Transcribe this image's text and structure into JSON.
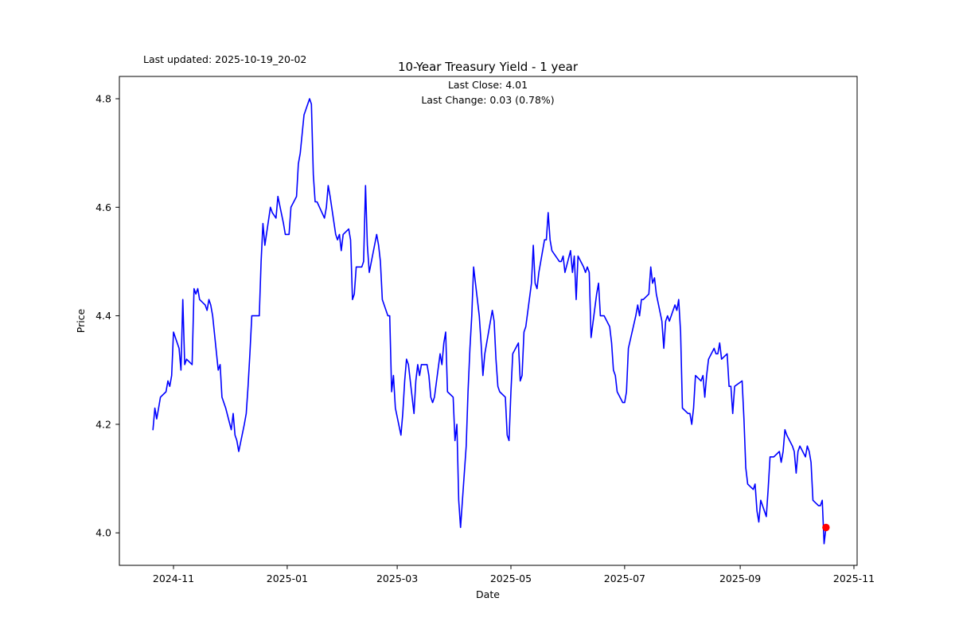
{
  "header": {
    "last_updated": "Last updated: 2025-10-19_20-02",
    "title": "10-Year Treasury Yield - 1 year",
    "annotation_line1": "Last Close: 4.01",
    "annotation_line2": "Last Change: 0.03 (0.78%)"
  },
  "chart_data": {
    "type": "line",
    "title": "10-Year Treasury Yield - 1 year",
    "xlabel": "Date",
    "ylabel": "Price",
    "ylim": [
      3.94,
      4.84
    ],
    "xlim": [
      "2024-10-03",
      "2025-11-04"
    ],
    "grid": false,
    "legend": "none",
    "x_ticks": [
      "2024-11",
      "2025-01",
      "2025-03",
      "2025-05",
      "2025-07",
      "2025-09",
      "2025-11"
    ],
    "y_ticks": [
      4.0,
      4.2,
      4.4,
      4.6,
      4.8
    ],
    "line_color": "#0000ff",
    "marker_color": "#ff0000",
    "last_point": {
      "date": "2025-10-17",
      "value": 4.01
    },
    "series": [
      {
        "name": "10-Year Treasury Yield",
        "color": "#0000ff",
        "points": [
          [
            "2024-10-21",
            4.19
          ],
          [
            "2024-10-22",
            4.23
          ],
          [
            "2024-10-23",
            4.21
          ],
          [
            "2024-10-24",
            4.23
          ],
          [
            "2024-10-25",
            4.25
          ],
          [
            "2024-10-28",
            4.26
          ],
          [
            "2024-10-29",
            4.28
          ],
          [
            "2024-10-30",
            4.27
          ],
          [
            "2024-10-31",
            4.29
          ],
          [
            "2024-11-01",
            4.37
          ],
          [
            "2024-11-04",
            4.34
          ],
          [
            "2024-11-05",
            4.3
          ],
          [
            "2024-11-06",
            4.43
          ],
          [
            "2024-11-07",
            4.31
          ],
          [
            "2024-11-08",
            4.32
          ],
          [
            "2024-11-11",
            4.31
          ],
          [
            "2024-11-12",
            4.45
          ],
          [
            "2024-11-13",
            4.44
          ],
          [
            "2024-11-14",
            4.45
          ],
          [
            "2024-11-15",
            4.43
          ],
          [
            "2024-11-18",
            4.42
          ],
          [
            "2024-11-19",
            4.41
          ],
          [
            "2024-11-20",
            4.43
          ],
          [
            "2024-11-21",
            4.42
          ],
          [
            "2024-11-22",
            4.4
          ],
          [
            "2024-11-25",
            4.3
          ],
          [
            "2024-11-26",
            4.31
          ],
          [
            "2024-11-27",
            4.25
          ],
          [
            "2024-11-29",
            4.23
          ],
          [
            "2024-12-02",
            4.19
          ],
          [
            "2024-12-03",
            4.22
          ],
          [
            "2024-12-04",
            4.18
          ],
          [
            "2024-12-05",
            4.17
          ],
          [
            "2024-12-06",
            4.15
          ],
          [
            "2024-12-09",
            4.2
          ],
          [
            "2024-12-10",
            4.22
          ],
          [
            "2024-12-11",
            4.27
          ],
          [
            "2024-12-12",
            4.33
          ],
          [
            "2024-12-13",
            4.4
          ],
          [
            "2024-12-16",
            4.4
          ],
          [
            "2024-12-17",
            4.4
          ],
          [
            "2024-12-18",
            4.5
          ],
          [
            "2024-12-19",
            4.57
          ],
          [
            "2024-12-20",
            4.53
          ],
          [
            "2024-12-23",
            4.6
          ],
          [
            "2024-12-24",
            4.59
          ],
          [
            "2024-12-26",
            4.58
          ],
          [
            "2024-12-27",
            4.62
          ],
          [
            "2024-12-30",
            4.57
          ],
          [
            "2024-12-31",
            4.55
          ],
          [
            "2025-01-02",
            4.55
          ],
          [
            "2025-01-03",
            4.6
          ],
          [
            "2025-01-06",
            4.62
          ],
          [
            "2025-01-07",
            4.68
          ],
          [
            "2025-01-08",
            4.7
          ],
          [
            "2025-01-10",
            4.77
          ],
          [
            "2025-01-13",
            4.8
          ],
          [
            "2025-01-14",
            4.79
          ],
          [
            "2025-01-15",
            4.66
          ],
          [
            "2025-01-16",
            4.61
          ],
          [
            "2025-01-17",
            4.61
          ],
          [
            "2025-01-21",
            4.58
          ],
          [
            "2025-01-22",
            4.6
          ],
          [
            "2025-01-23",
            4.64
          ],
          [
            "2025-01-24",
            4.62
          ],
          [
            "2025-01-27",
            4.55
          ],
          [
            "2025-01-28",
            4.54
          ],
          [
            "2025-01-29",
            4.55
          ],
          [
            "2025-01-30",
            4.52
          ],
          [
            "2025-01-31",
            4.55
          ],
          [
            "2025-02-03",
            4.56
          ],
          [
            "2025-02-04",
            4.54
          ],
          [
            "2025-02-05",
            4.43
          ],
          [
            "2025-02-06",
            4.44
          ],
          [
            "2025-02-07",
            4.49
          ],
          [
            "2025-02-10",
            4.49
          ],
          [
            "2025-02-11",
            4.5
          ],
          [
            "2025-02-12",
            4.64
          ],
          [
            "2025-02-13",
            4.53
          ],
          [
            "2025-02-14",
            4.48
          ],
          [
            "2025-02-18",
            4.55
          ],
          [
            "2025-02-19",
            4.53
          ],
          [
            "2025-02-20",
            4.5
          ],
          [
            "2025-02-21",
            4.43
          ],
          [
            "2025-02-24",
            4.4
          ],
          [
            "2025-02-25",
            4.4
          ],
          [
            "2025-02-26",
            4.26
          ],
          [
            "2025-02-27",
            4.29
          ],
          [
            "2025-02-28",
            4.23
          ],
          [
            "2025-03-03",
            4.18
          ],
          [
            "2025-03-04",
            4.22
          ],
          [
            "2025-03-05",
            4.28
          ],
          [
            "2025-03-06",
            4.32
          ],
          [
            "2025-03-07",
            4.31
          ],
          [
            "2025-03-10",
            4.22
          ],
          [
            "2025-03-11",
            4.28
          ],
          [
            "2025-03-12",
            4.31
          ],
          [
            "2025-03-13",
            4.29
          ],
          [
            "2025-03-14",
            4.31
          ],
          [
            "2025-03-17",
            4.31
          ],
          [
            "2025-03-18",
            4.29
          ],
          [
            "2025-03-19",
            4.25
          ],
          [
            "2025-03-20",
            4.24
          ],
          [
            "2025-03-21",
            4.25
          ],
          [
            "2025-03-24",
            4.33
          ],
          [
            "2025-03-25",
            4.31
          ],
          [
            "2025-03-26",
            4.35
          ],
          [
            "2025-03-27",
            4.37
          ],
          [
            "2025-03-28",
            4.26
          ],
          [
            "2025-03-31",
            4.25
          ],
          [
            "2025-04-01",
            4.17
          ],
          [
            "2025-04-02",
            4.2
          ],
          [
            "2025-04-03",
            4.06
          ],
          [
            "2025-04-04",
            4.01
          ],
          [
            "2025-04-07",
            4.16
          ],
          [
            "2025-04-08",
            4.26
          ],
          [
            "2025-04-09",
            4.34
          ],
          [
            "2025-04-10",
            4.4
          ],
          [
            "2025-04-11",
            4.49
          ],
          [
            "2025-04-14",
            4.4
          ],
          [
            "2025-04-15",
            4.35
          ],
          [
            "2025-04-16",
            4.29
          ],
          [
            "2025-04-17",
            4.33
          ],
          [
            "2025-04-21",
            4.41
          ],
          [
            "2025-04-22",
            4.39
          ],
          [
            "2025-04-23",
            4.32
          ],
          [
            "2025-04-24",
            4.27
          ],
          [
            "2025-04-25",
            4.26
          ],
          [
            "2025-04-28",
            4.25
          ],
          [
            "2025-04-29",
            4.18
          ],
          [
            "2025-04-30",
            4.17
          ],
          [
            "2025-05-01",
            4.26
          ],
          [
            "2025-05-02",
            4.33
          ],
          [
            "2025-05-05",
            4.35
          ],
          [
            "2025-05-06",
            4.28
          ],
          [
            "2025-05-07",
            4.29
          ],
          [
            "2025-05-08",
            4.37
          ],
          [
            "2025-05-09",
            4.38
          ],
          [
            "2025-05-12",
            4.46
          ],
          [
            "2025-05-13",
            4.53
          ],
          [
            "2025-05-14",
            4.46
          ],
          [
            "2025-05-15",
            4.45
          ],
          [
            "2025-05-16",
            4.48
          ],
          [
            "2025-05-19",
            4.54
          ],
          [
            "2025-05-20",
            4.54
          ],
          [
            "2025-05-21",
            4.59
          ],
          [
            "2025-05-22",
            4.54
          ],
          [
            "2025-05-23",
            4.52
          ],
          [
            "2025-05-27",
            4.5
          ],
          [
            "2025-05-28",
            4.5
          ],
          [
            "2025-05-29",
            4.51
          ],
          [
            "2025-05-30",
            4.48
          ],
          [
            "2025-06-02",
            4.52
          ],
          [
            "2025-06-03",
            4.48
          ],
          [
            "2025-06-04",
            4.51
          ],
          [
            "2025-06-05",
            4.43
          ],
          [
            "2025-06-06",
            4.51
          ],
          [
            "2025-06-09",
            4.49
          ],
          [
            "2025-06-10",
            4.48
          ],
          [
            "2025-06-11",
            4.49
          ],
          [
            "2025-06-12",
            4.48
          ],
          [
            "2025-06-13",
            4.36
          ],
          [
            "2025-06-16",
            4.44
          ],
          [
            "2025-06-17",
            4.46
          ],
          [
            "2025-06-18",
            4.4
          ],
          [
            "2025-06-20",
            4.4
          ],
          [
            "2025-06-23",
            4.38
          ],
          [
            "2025-06-24",
            4.35
          ],
          [
            "2025-06-25",
            4.3
          ],
          [
            "2025-06-26",
            4.29
          ],
          [
            "2025-06-27",
            4.26
          ],
          [
            "2025-06-30",
            4.24
          ],
          [
            "2025-07-01",
            4.24
          ],
          [
            "2025-07-02",
            4.26
          ],
          [
            "2025-07-03",
            4.34
          ],
          [
            "2025-07-07",
            4.4
          ],
          [
            "2025-07-08",
            4.42
          ],
          [
            "2025-07-09",
            4.4
          ],
          [
            "2025-07-10",
            4.43
          ],
          [
            "2025-07-11",
            4.43
          ],
          [
            "2025-07-14",
            4.44
          ],
          [
            "2025-07-15",
            4.49
          ],
          [
            "2025-07-16",
            4.46
          ],
          [
            "2025-07-17",
            4.47
          ],
          [
            "2025-07-18",
            4.44
          ],
          [
            "2025-07-21",
            4.39
          ],
          [
            "2025-07-22",
            4.34
          ],
          [
            "2025-07-23",
            4.39
          ],
          [
            "2025-07-24",
            4.4
          ],
          [
            "2025-07-25",
            4.39
          ],
          [
            "2025-07-28",
            4.42
          ],
          [
            "2025-07-29",
            4.41
          ],
          [
            "2025-07-30",
            4.43
          ],
          [
            "2025-07-31",
            4.37
          ],
          [
            "2025-08-01",
            4.23
          ],
          [
            "2025-08-04",
            4.22
          ],
          [
            "2025-08-05",
            4.22
          ],
          [
            "2025-08-06",
            4.2
          ],
          [
            "2025-08-07",
            4.23
          ],
          [
            "2025-08-08",
            4.29
          ],
          [
            "2025-08-11",
            4.28
          ],
          [
            "2025-08-12",
            4.29
          ],
          [
            "2025-08-13",
            4.25
          ],
          [
            "2025-08-14",
            4.29
          ],
          [
            "2025-08-15",
            4.32
          ],
          [
            "2025-08-18",
            4.34
          ],
          [
            "2025-08-19",
            4.33
          ],
          [
            "2025-08-20",
            4.33
          ],
          [
            "2025-08-21",
            4.35
          ],
          [
            "2025-08-22",
            4.32
          ],
          [
            "2025-08-25",
            4.33
          ],
          [
            "2025-08-26",
            4.27
          ],
          [
            "2025-08-27",
            4.27
          ],
          [
            "2025-08-28",
            4.22
          ],
          [
            "2025-08-29",
            4.27
          ],
          [
            "2025-09-02",
            4.28
          ],
          [
            "2025-09-03",
            4.21
          ],
          [
            "2025-09-04",
            4.12
          ],
          [
            "2025-09-05",
            4.09
          ],
          [
            "2025-09-08",
            4.08
          ],
          [
            "2025-09-09",
            4.09
          ],
          [
            "2025-09-10",
            4.04
          ],
          [
            "2025-09-11",
            4.02
          ],
          [
            "2025-09-12",
            4.06
          ],
          [
            "2025-09-15",
            4.03
          ],
          [
            "2025-09-16",
            4.08
          ],
          [
            "2025-09-17",
            4.14
          ],
          [
            "2025-09-18",
            4.14
          ],
          [
            "2025-09-19",
            4.14
          ],
          [
            "2025-09-22",
            4.15
          ],
          [
            "2025-09-23",
            4.13
          ],
          [
            "2025-09-24",
            4.15
          ],
          [
            "2025-09-25",
            4.19
          ],
          [
            "2025-09-26",
            4.18
          ],
          [
            "2025-09-29",
            4.16
          ],
          [
            "2025-09-30",
            4.15
          ],
          [
            "2025-10-01",
            4.11
          ],
          [
            "2025-10-02",
            4.15
          ],
          [
            "2025-10-03",
            4.16
          ],
          [
            "2025-10-06",
            4.14
          ],
          [
            "2025-10-07",
            4.16
          ],
          [
            "2025-10-08",
            4.15
          ],
          [
            "2025-10-09",
            4.13
          ],
          [
            "2025-10-10",
            4.06
          ],
          [
            "2025-10-13",
            4.05
          ],
          [
            "2025-10-14",
            4.05
          ],
          [
            "2025-10-15",
            4.06
          ],
          [
            "2025-10-16",
            3.98
          ],
          [
            "2025-10-17",
            4.01
          ]
        ]
      }
    ]
  }
}
